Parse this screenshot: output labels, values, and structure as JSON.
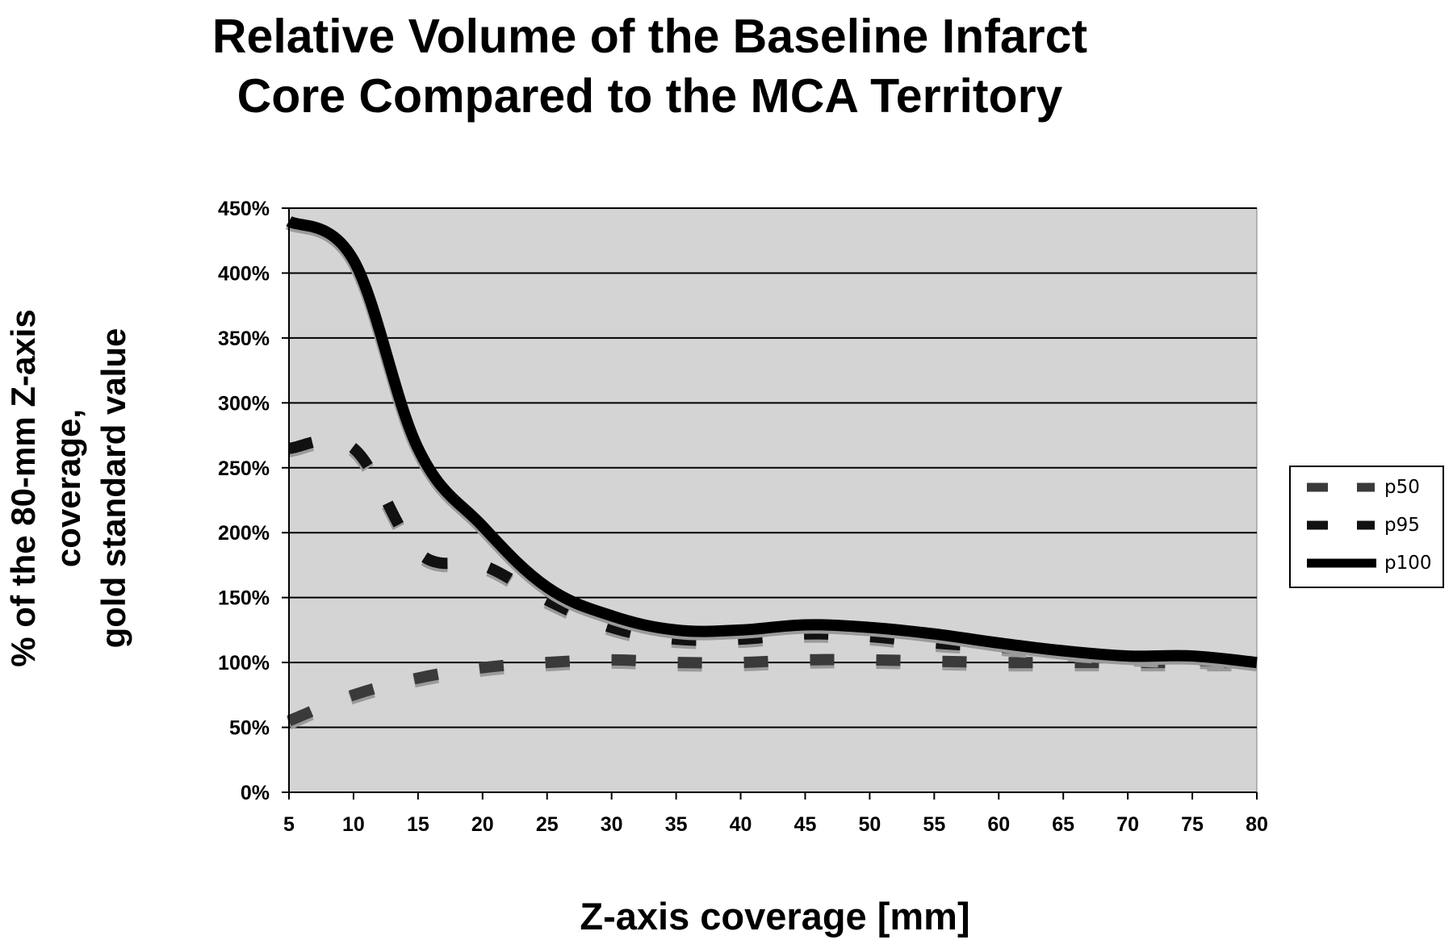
{
  "chart_data": {
    "type": "line",
    "title": [
      "Relative Volume of the Baseline Infarct",
      "Core Compared to the MCA Territory"
    ],
    "xlabel": "Z-axis coverage [mm]",
    "ylabel": [
      "% of the 80-mm Z-axis",
      "coverage,",
      "gold standard value"
    ],
    "x": [
      5,
      10,
      15,
      20,
      25,
      30,
      35,
      40,
      45,
      50,
      55,
      60,
      65,
      70,
      75,
      80
    ],
    "x_tick_labels": [
      "5",
      "10",
      "15",
      "20",
      "25",
      "30",
      "35",
      "40",
      "45",
      "50",
      "55",
      "60",
      "65",
      "70",
      "75",
      "80"
    ],
    "y_ticks": [
      0,
      50,
      100,
      150,
      200,
      250,
      300,
      350,
      400,
      450
    ],
    "y_tick_labels": [
      "0%",
      "50%",
      "100%",
      "150%",
      "200%",
      "250%",
      "300%",
      "350%",
      "400%",
      "450%"
    ],
    "ylim": [
      0,
      450
    ],
    "xlim": [
      5,
      80
    ],
    "grid": "horizontal",
    "plot_background": "#d4d4d4",
    "legend_position": "right",
    "series": [
      {
        "name": "p50",
        "style": "dashed",
        "color": "#3a3a3a",
        "values": [
          55,
          75,
          88,
          96,
          100,
          102,
          100,
          100,
          102,
          102,
          101,
          100,
          100,
          100,
          100,
          100
        ]
      },
      {
        "name": "p95",
        "style": "dashed",
        "color": "#111111",
        "values": [
          265,
          265,
          185,
          175,
          148,
          127,
          118,
          118,
          122,
          120,
          115,
          112,
          108,
          104,
          102,
          100
        ]
      },
      {
        "name": "p100",
        "style": "solid",
        "color": "#000000",
        "values": [
          440,
          410,
          265,
          205,
          158,
          136,
          125,
          125,
          129,
          127,
          122,
          115,
          109,
          105,
          105,
          100
        ]
      }
    ]
  }
}
